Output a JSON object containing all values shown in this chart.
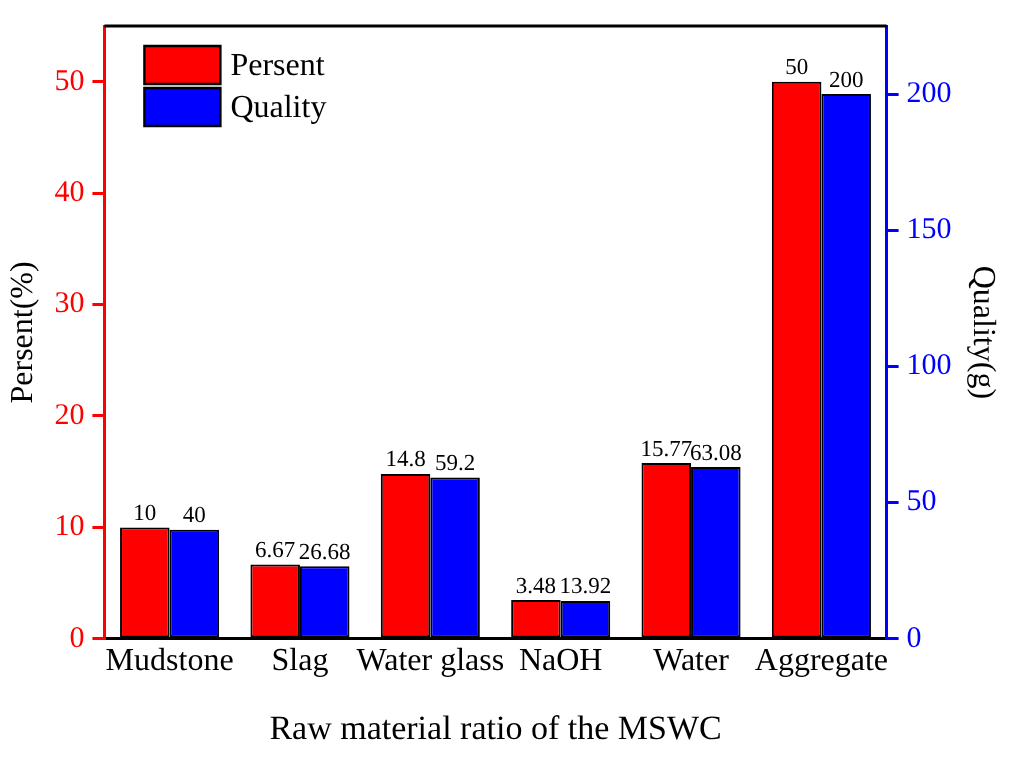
{
  "chart_data": {
    "type": "bar",
    "xlabel": "Raw material ratio of the MSWC",
    "ylabel": "Persent(%)",
    "y2label": "Quality(g)",
    "categories": [
      "Mudstone",
      "Slag",
      "Water glass",
      "NaOH",
      "Water",
      "Aggregate"
    ],
    "series": [
      {
        "name": "Persent",
        "color": "#ff0000",
        "values": [
          10,
          6.67,
          14.8,
          3.48,
          15.77,
          50
        ]
      },
      {
        "name": "Quality",
        "color": "#0000ff",
        "axis": "y2",
        "values": [
          40,
          26.68,
          59.2,
          13.92,
          63.08,
          200
        ]
      }
    ],
    "ylim": [
      0,
      55
    ],
    "yticks": [
      0,
      10,
      20,
      30,
      40,
      50
    ],
    "y2lim": [
      0,
      225
    ],
    "y2ticks": [
      0,
      50,
      100,
      150,
      200
    ],
    "data_labels": true,
    "legend": "top left",
    "grid": false
  }
}
